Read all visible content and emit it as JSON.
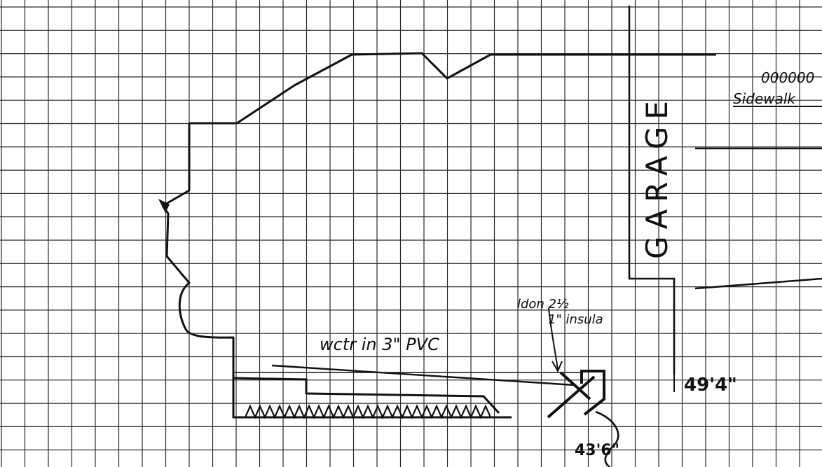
{
  "labels": {
    "garage": "GARAGE",
    "sidewalk": "Sidewalk",
    "sidewalk_scribble": "000000",
    "water_line": "wctr in 3\" PVC",
    "insulation_note_1": "ldon 2½",
    "insulation_note_2": "1\" insula",
    "dim_right": "49'4\"",
    "dim_bottom": "43'6\""
  },
  "colors": {
    "ink": "#111111",
    "grid": "#2a2a2a",
    "paper": "#ffffff"
  }
}
